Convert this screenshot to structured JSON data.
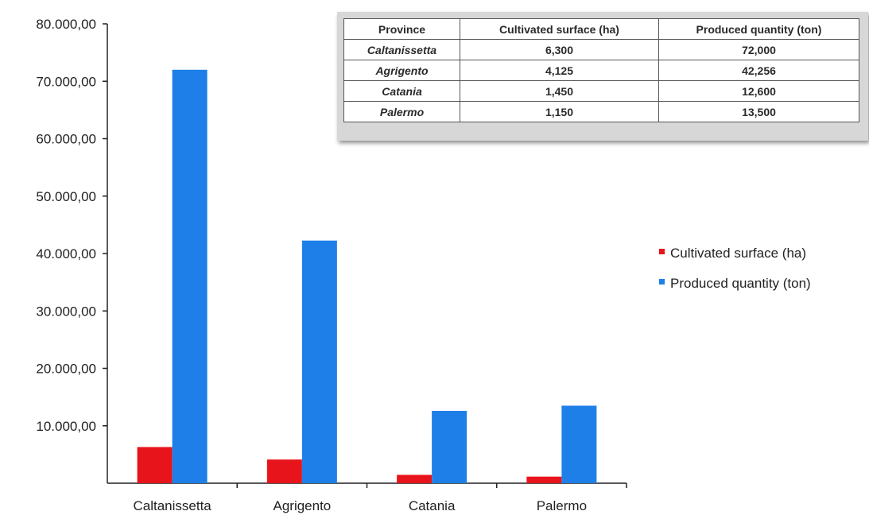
{
  "chart_data": {
    "type": "bar",
    "categories": [
      "Caltanissetta",
      "Agrigento",
      "Catania",
      "Palermo"
    ],
    "series": [
      {
        "name": "Cultivated surface (ha)",
        "values": [
          6300,
          4125,
          1450,
          1150
        ],
        "color": "#e8141b"
      },
      {
        "name": "Produced quantity (ton)",
        "values": [
          72000,
          42256,
          12600,
          13500
        ],
        "color": "#1f7fe8"
      }
    ],
    "title": "",
    "xlabel": "",
    "ylabel": "",
    "ylim": [
      0,
      80000
    ],
    "y_ticks": [
      10000,
      20000,
      30000,
      40000,
      50000,
      60000,
      70000,
      80000
    ],
    "y_tick_labels": [
      "10.000,00",
      "20.000,00",
      "30.000,00",
      "40.000,00",
      "50.000,00",
      "60.000,00",
      "70.000,00",
      "80.000,00"
    ],
    "grid": false,
    "legend_position": "right"
  },
  "table": {
    "headers": [
      "Province",
      "Cultivated surface (ha)",
      "Produced quantity (ton)"
    ],
    "rows": [
      [
        "Caltanissetta",
        "6,300",
        "72,000"
      ],
      [
        "Agrigento",
        "4,125",
        "42,256"
      ],
      [
        "Catania",
        "1,450",
        "12,600"
      ],
      [
        "Palermo",
        "1,150",
        "13,500"
      ]
    ]
  }
}
